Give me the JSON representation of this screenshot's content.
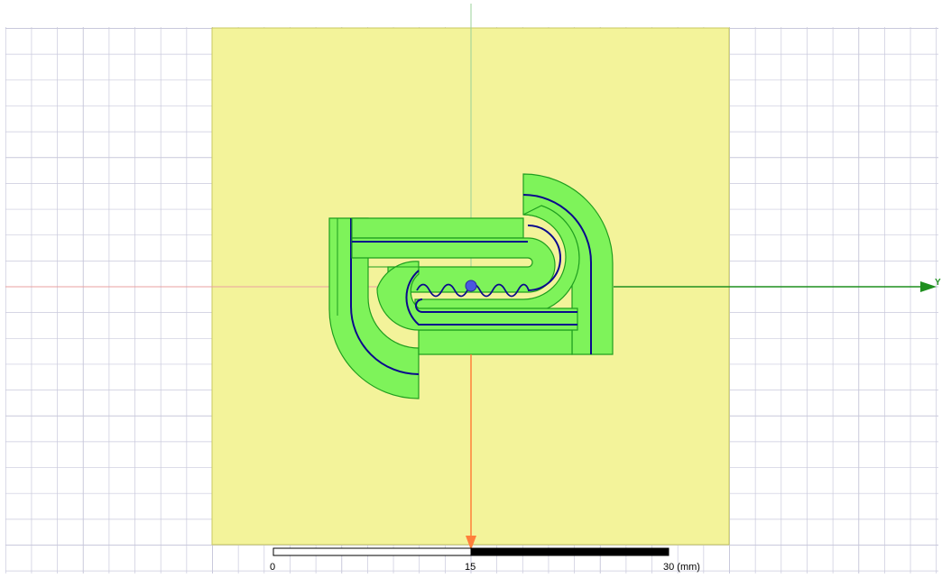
{
  "view": {
    "background": "#ffffff",
    "grid_color": "#c9c9dc",
    "substrate_color": "#f3f39a",
    "substrate_edge": "#c8c860",
    "trace_fill": "#7ef35a",
    "trace_edge": "#1f9e1f",
    "inner_line": "#0a0a8c",
    "y_axis_color": "#1f8f1f",
    "x_axis_color": "#ff7f3a",
    "origin_color": "#4a57e0"
  },
  "axes": {
    "y_label": "Y"
  },
  "scale_bar": {
    "tick_labels": [
      "0",
      "15",
      "30 (mm)"
    ]
  }
}
